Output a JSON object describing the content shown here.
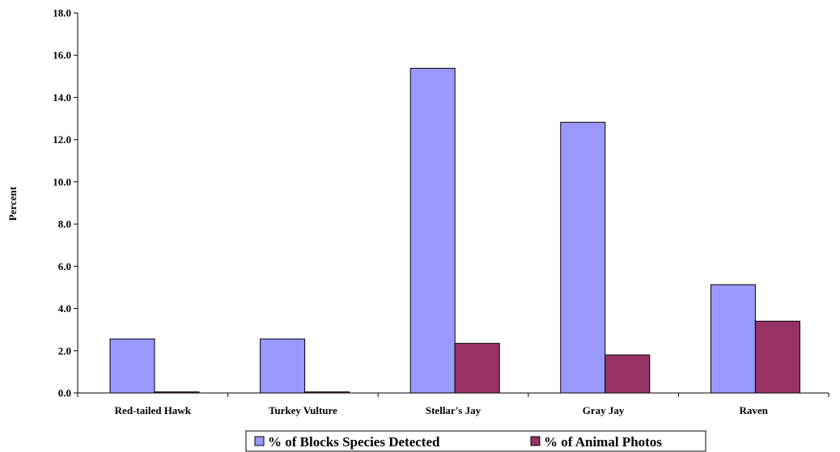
{
  "chart_data": {
    "type": "bar",
    "title": "",
    "xlabel": "",
    "ylabel": "Percent",
    "ylim": [
      0,
      18
    ],
    "yticks": [
      "0.0",
      "2.0",
      "4.0",
      "6.0",
      "8.0",
      "10.0",
      "12.0",
      "14.0",
      "16.0",
      "18.0"
    ],
    "categories": [
      "Red-tailed Hawk",
      "Turkey Vulture",
      "Stellar's Jay",
      "Gray Jay",
      "Raven"
    ],
    "series": [
      {
        "name": "% of Blocks Species Detected",
        "color": "#9999ff",
        "values": [
          2.56,
          2.56,
          15.38,
          12.82,
          5.13
        ]
      },
      {
        "name": "% of Animal Photos",
        "color": "#993366",
        "values": [
          0.05,
          0.05,
          2.35,
          1.8,
          3.4
        ]
      }
    ],
    "grid": false,
    "legend_position": "bottom"
  }
}
